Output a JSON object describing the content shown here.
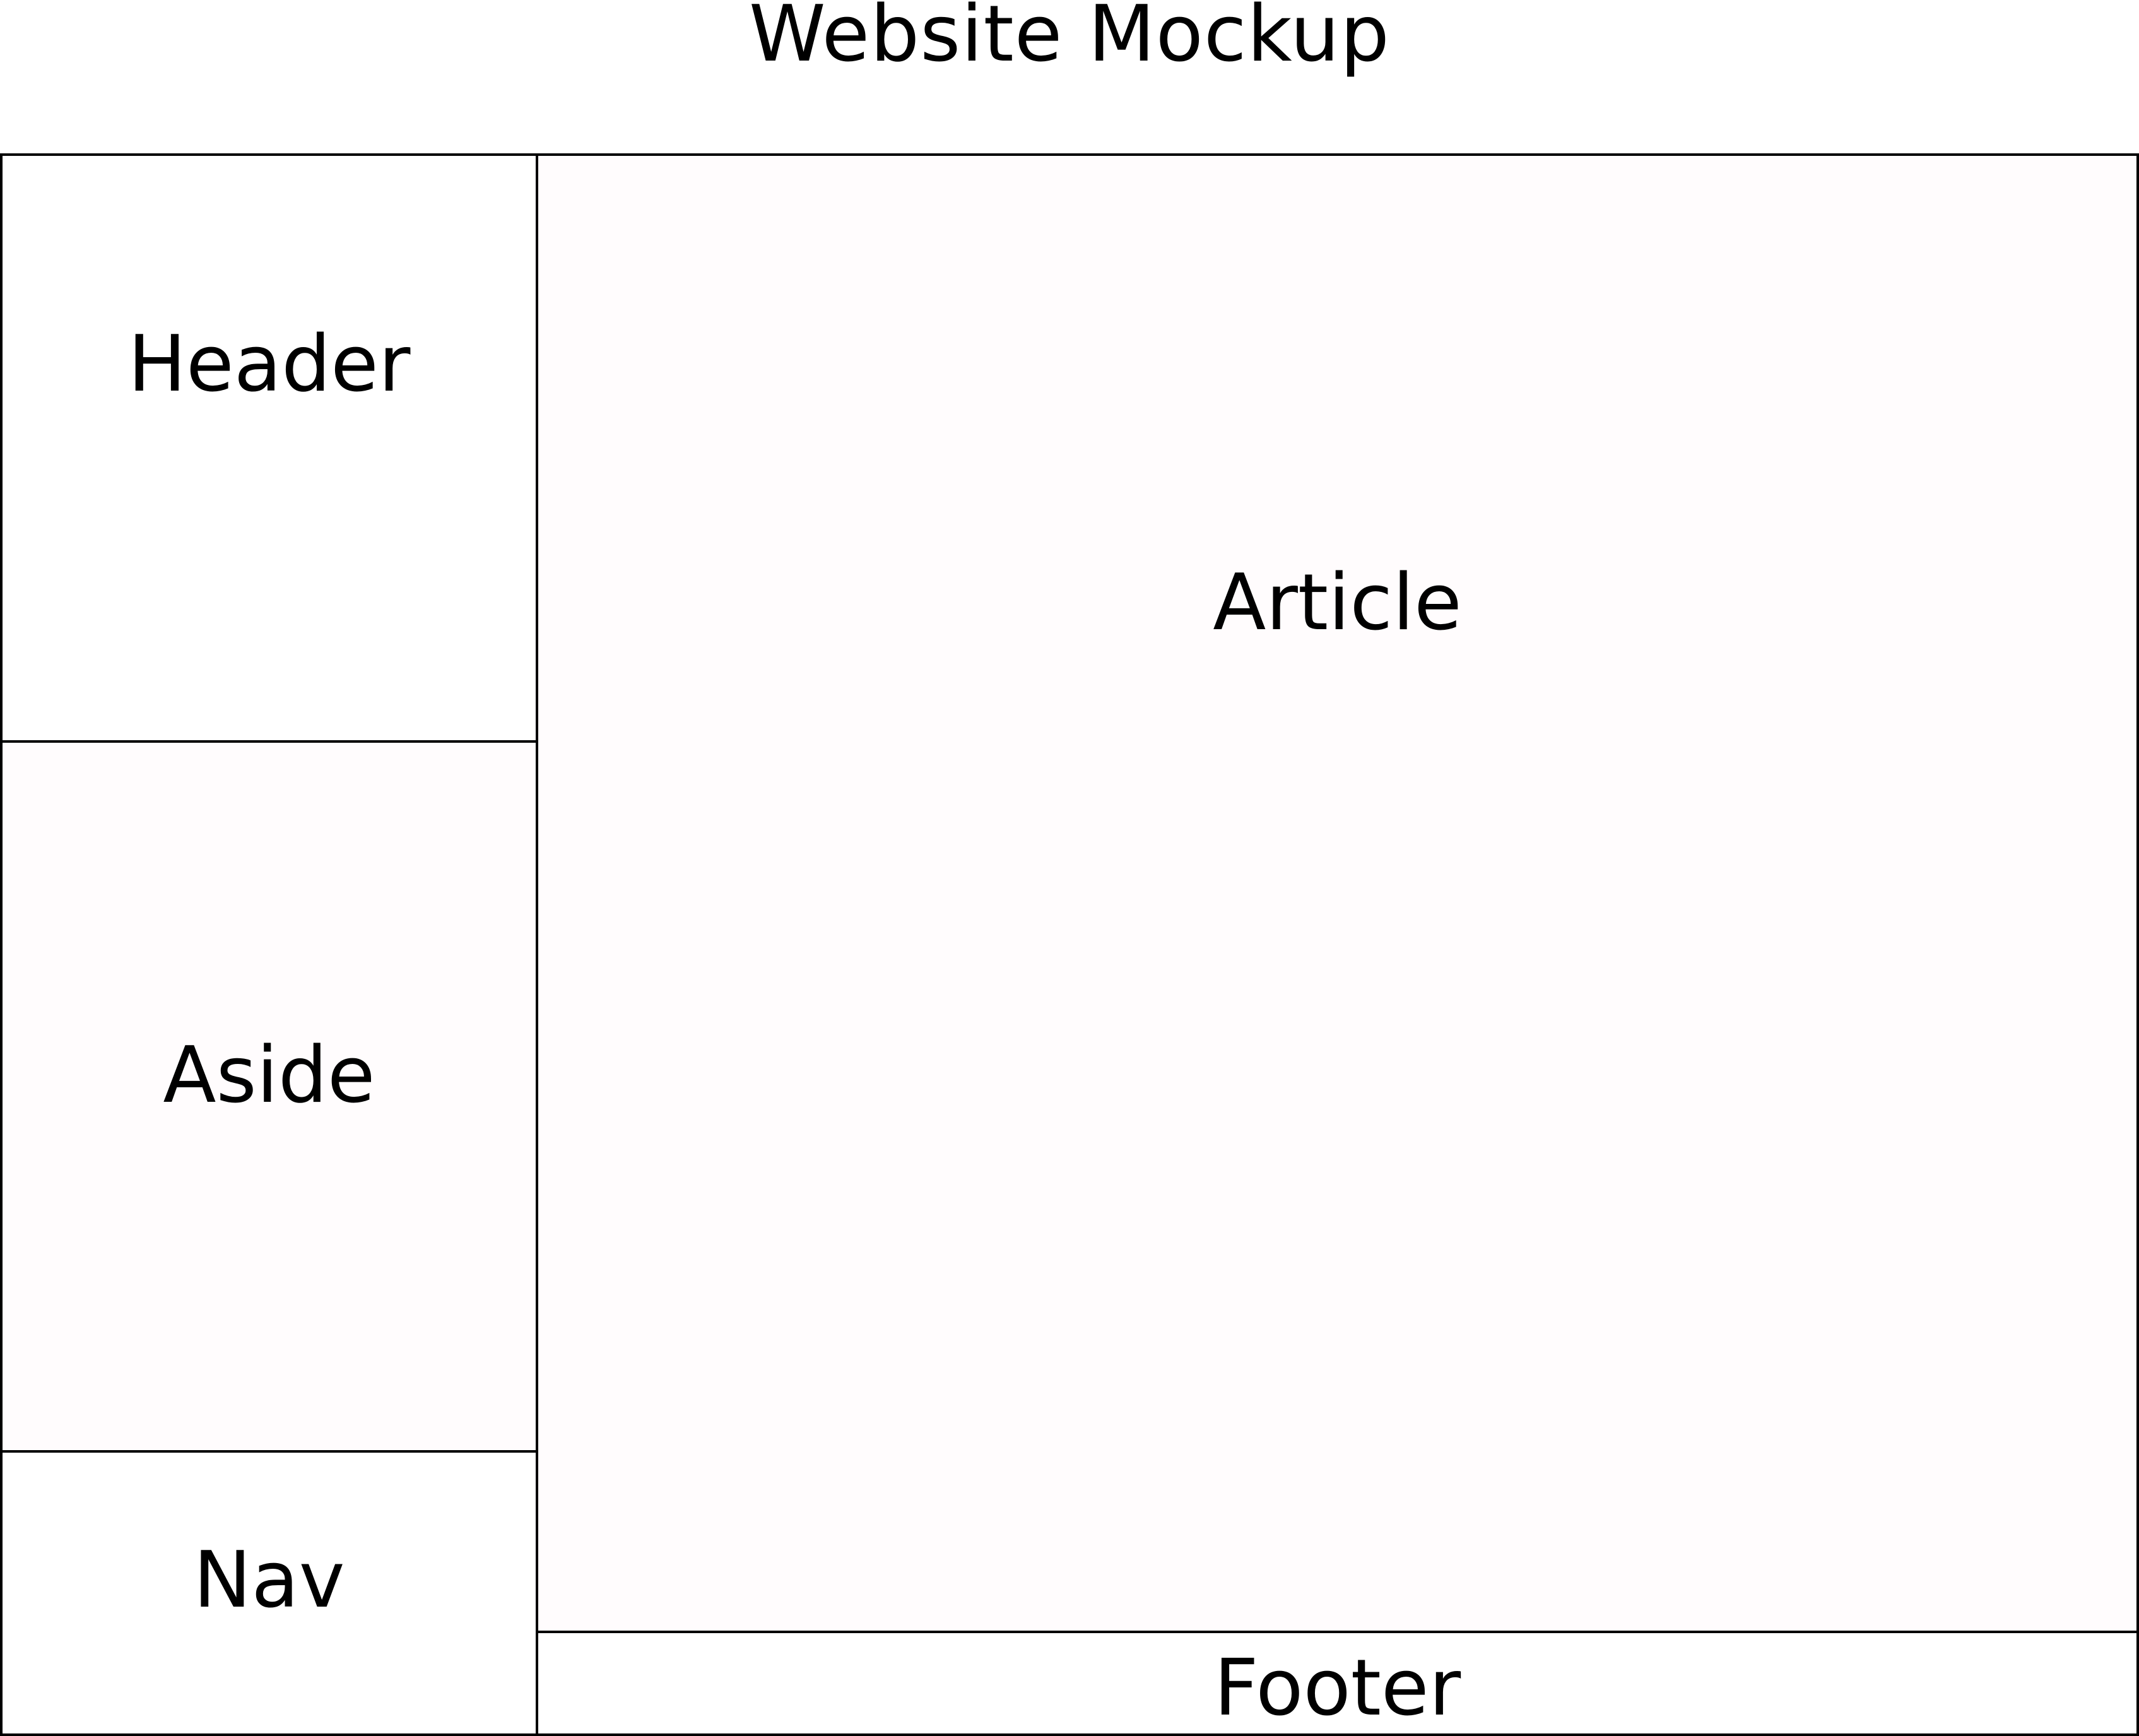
{
  "title": "Website Mockup",
  "regions": {
    "header": "Header",
    "aside": "Aside",
    "nav": "Nav",
    "article": "Article",
    "footer": "Footer"
  },
  "colors": {
    "stroke": "#000000",
    "light_fill": "#fffcfd",
    "background": "#ffffff"
  }
}
